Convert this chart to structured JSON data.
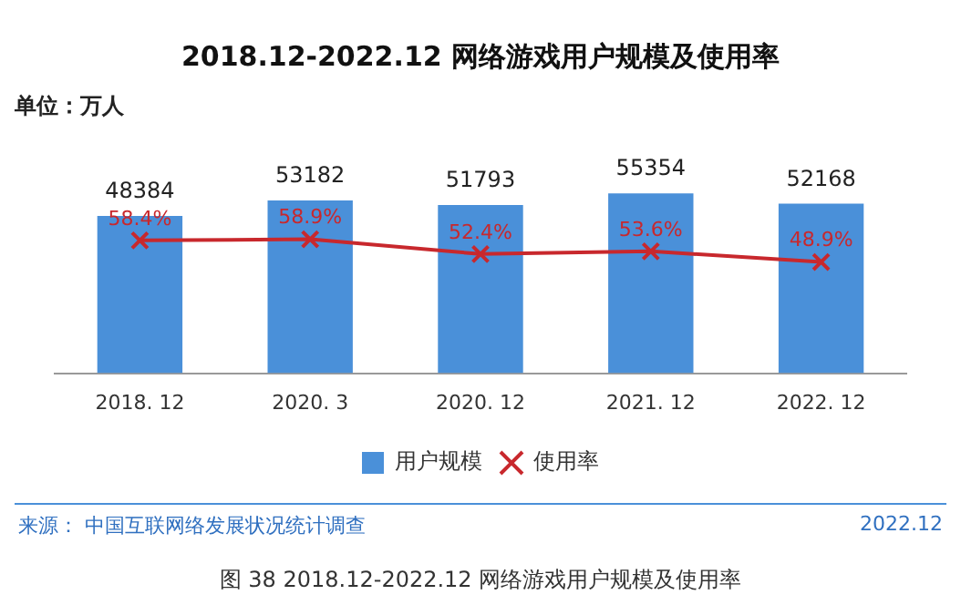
{
  "chart_data": {
    "type": "bar",
    "title": "2018.12-2022.12 网络游戏用户规模及使用率",
    "ylabel": "单位：万人",
    "categories": [
      "2018. 12",
      "2020. 3",
      "2020. 12",
      "2021. 12",
      "2022. 12"
    ],
    "series": [
      {
        "name": "用户规模",
        "color": "#4a90d9",
        "values": [
          48384,
          53182,
          51793,
          55354,
          52168
        ],
        "value_labels": [
          "48384",
          "53182",
          "51793",
          "55354",
          "52168"
        ]
      },
      {
        "name": "使用率",
        "type": "line",
        "axis": "y2",
        "color": "#c8282d",
        "marker": "cross",
        "values": [
          58.4,
          58.9,
          52.4,
          53.6,
          48.9
        ],
        "value_labels": [
          "58.4%",
          "58.9%",
          "52.4%",
          "53.6%",
          "48.9%"
        ]
      }
    ],
    "tick_labels": "x",
    "grid": false,
    "legend": "bottom",
    "annotations": [
      "来源： 中国互联网络发展状况统计调查",
      "2022.12",
      "图 38 2018.12-2022.12 网络游戏用户规模及使用率"
    ]
  }
}
